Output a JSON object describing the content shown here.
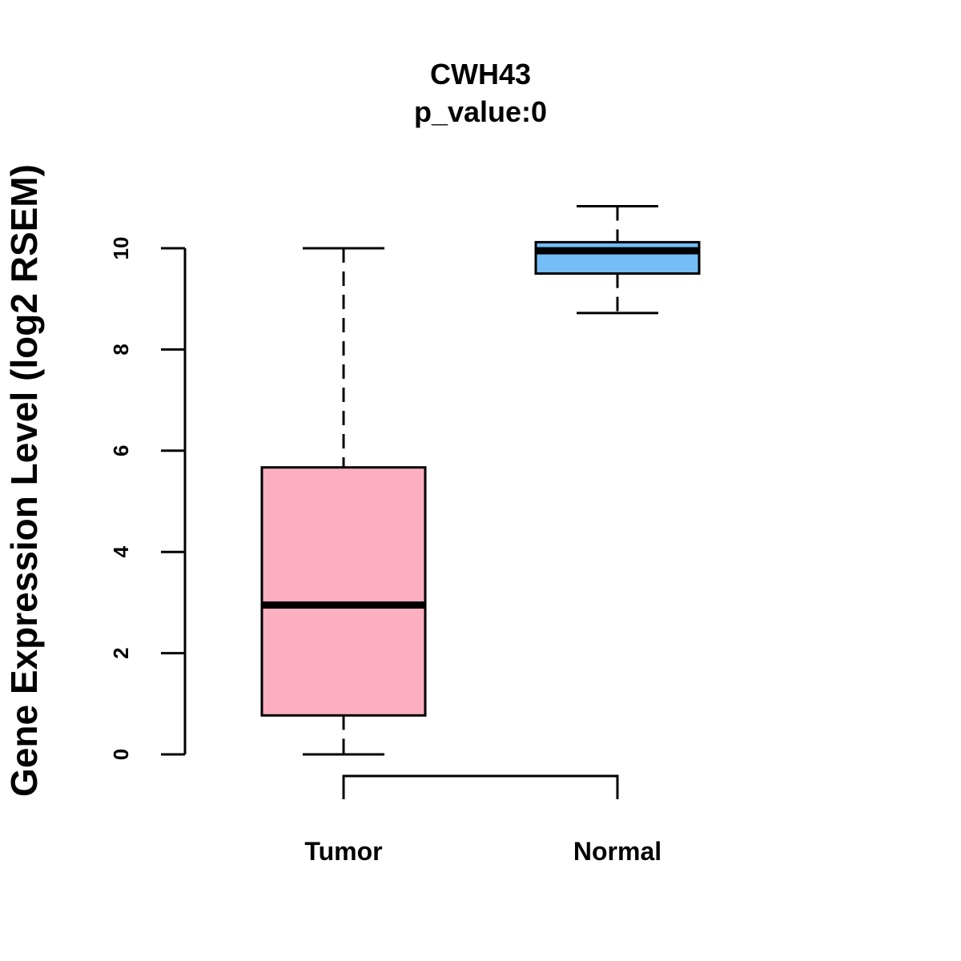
{
  "chart_data": {
    "type": "boxplot",
    "title": "CWH43",
    "subtitle": "p_value:0",
    "ylabel": "Gene Expression Level (log2 RSEM)",
    "xlabel": "",
    "ylim": [
      0,
      10
    ],
    "yticks": [
      "0",
      "2",
      "4",
      "6",
      "8",
      "10"
    ],
    "ytick_values": [
      0,
      2,
      4,
      6,
      8,
      10
    ],
    "categories": [
      "Tumor",
      "Normal"
    ],
    "boxes": [
      {
        "name": "Tumor",
        "whisker_low": 0.0,
        "q1": 0.77,
        "median": 2.95,
        "q3": 5.67,
        "whisker_high": 10.0,
        "color": "#fcafc1"
      },
      {
        "name": "Normal",
        "whisker_low": 8.72,
        "q1": 9.5,
        "median": 9.95,
        "q3": 10.12,
        "whisker_high": 10.83,
        "color": "#74bdf6"
      }
    ],
    "significance_bracket": {
      "from": "Tumor",
      "to": "Normal"
    }
  }
}
